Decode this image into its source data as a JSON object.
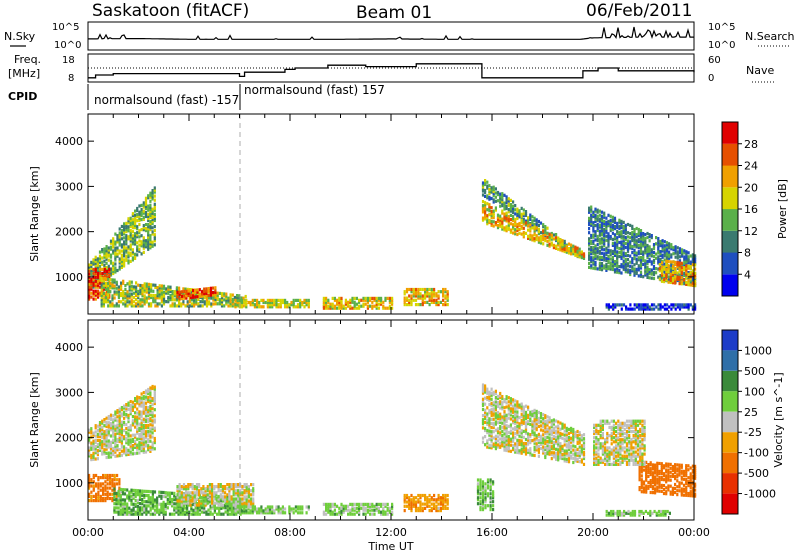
{
  "header": {
    "station": "Saskatoon (fitACF)",
    "beam": "Beam 01",
    "date": "06/Feb/2011"
  },
  "top_panels": {
    "nsky_label": "N.Sky",
    "nsky_ticks": [
      "10^5",
      "10^0"
    ],
    "nsearch_label": "N.Search",
    "nsearch_ticks": [
      "10^5",
      "10^0"
    ],
    "freq_label_1": "Freq.",
    "freq_label_2": "[MHz]",
    "freq_ticks": [
      "18",
      "8"
    ],
    "nave_label": "Nave",
    "nave_ticks": [
      "60",
      "0"
    ],
    "cpid_label": "CPID",
    "cpid_segments": [
      "normalsound (fast) -157",
      "normalsound (fast) 157"
    ]
  },
  "x_axis": {
    "label": "Time UT",
    "ticks": [
      "00:00",
      "04:00",
      "08:00",
      "12:00",
      "16:00",
      "20:00",
      "00:00"
    ],
    "range_hours": [
      0,
      24
    ]
  },
  "y_axis": {
    "label": "Slant Range [km]",
    "ticks": [
      "1000",
      "2000",
      "3000",
      "4000"
    ],
    "range_km": [
      180,
      4600
    ]
  },
  "power_colorbar": {
    "label": "Power [dB]",
    "ticks": [
      "4",
      "8",
      "12",
      "16",
      "20",
      "24",
      "28"
    ],
    "colors": [
      "#0000ee",
      "#1f4fbf",
      "#3a7a70",
      "#5ab04a",
      "#d6d400",
      "#f0a000",
      "#e65000",
      "#e00000"
    ]
  },
  "velocity_colorbar": {
    "label": "Velocity [m s^-1]",
    "ticks": [
      "1000",
      "500",
      "100",
      "25",
      "-25",
      "-100",
      "-500",
      "-1000"
    ],
    "colors": [
      "#1c3cc8",
      "#2f6fa8",
      "#3a8a3a",
      "#6fce3c",
      "#c0c0c0",
      "#f0a000",
      "#f07000",
      "#e83000",
      "#e00000"
    ]
  },
  "chart_data": [
    {
      "type": "line",
      "title": "N.Sky / N.Search",
      "x_hours": [
        0,
        2,
        4,
        6,
        8,
        10,
        12,
        14,
        16,
        18,
        19.5,
        20,
        22,
        24
      ],
      "series": [
        {
          "name": "N.Sky",
          "values": [
            3,
            4,
            2,
            2,
            2,
            2,
            3,
            2,
            2,
            2,
            2,
            6,
            8,
            8
          ]
        }
      ]
    },
    {
      "type": "line",
      "title": "Freq. / Nave",
      "x_hours": [
        0,
        0.3,
        1.0,
        6.0,
        6.2,
        7.8,
        8.2,
        9.5,
        11.0,
        13.0,
        15.6,
        19.6,
        20.2,
        21.0,
        24
      ],
      "series": [
        {
          "name": "Freq.",
          "values": [
            9.5,
            10.5,
            11.0,
            10.0,
            11.5,
            12.5,
            13.0,
            14.0,
            13.5,
            14.5,
            9.5,
            12.0,
            13.0,
            12.0,
            11.5
          ]
        },
        {
          "name": "Nave",
          "values": [
            28,
            30,
            32,
            28,
            30,
            38,
            40,
            44,
            42,
            48,
            22,
            34,
            40,
            36,
            34
          ]
        }
      ],
      "nave_reference_line": 35
    },
    {
      "type": "heatmap",
      "title": "Power [dB]",
      "xlabel": "Time UT",
      "ylabel": "Slant Range [km]",
      "x_range_hours": [
        0,
        24
      ],
      "y_range_km": [
        180,
        4600
      ],
      "z_range": [
        0,
        30
      ],
      "scatter_regions": [
        {
          "hours": [
            0.0,
            2.6
          ],
          "range_start_km": [
            700,
            1700
          ],
          "range_end_km": [
            1300,
            3000
          ],
          "power_db": 14
        },
        {
          "hours": [
            0.0,
            0.8
          ],
          "range_start_km": [
            500,
            500
          ],
          "range_end_km": [
            1200,
            1200
          ],
          "power_db": 28
        },
        {
          "hours": [
            0.5,
            6.2
          ],
          "range_start_km": [
            350,
            350
          ],
          "range_end_km": [
            1000,
            600
          ],
          "power_db": 16
        },
        {
          "hours": [
            3.5,
            5.0
          ],
          "range_start_km": [
            500,
            600
          ],
          "range_end_km": [
            700,
            800
          ],
          "power_db": 26
        },
        {
          "hours": [
            5.8,
            8.7
          ],
          "range_start_km": [
            330,
            330
          ],
          "range_end_km": [
            520,
            520
          ],
          "power_db": 18
        },
        {
          "hours": [
            9.3,
            12.0
          ],
          "range_start_km": [
            300,
            300
          ],
          "range_end_km": [
            560,
            560
          ],
          "power_db": 20
        },
        {
          "hours": [
            12.5,
            14.2
          ],
          "range_start_km": [
            380,
            380
          ],
          "range_end_km": [
            760,
            760
          ],
          "power_db": 20
        },
        {
          "hours": [
            15.6,
            19.6
          ],
          "range_start_km": [
            2800,
            1350
          ],
          "range_end_km": [
            3200,
            1500
          ],
          "power_db": 12
        },
        {
          "hours": [
            15.6,
            19.6
          ],
          "range_start_km": [
            2200,
            1400
          ],
          "range_end_km": [
            2700,
            1600
          ],
          "power_db": 20
        },
        {
          "hours": [
            19.8,
            24.0
          ],
          "range_start_km": [
            1200,
            800
          ],
          "range_end_km": [
            2600,
            1500
          ],
          "power_db": 10
        },
        {
          "hours": [
            22.6,
            24.0
          ],
          "range_start_km": [
            900,
            800
          ],
          "range_end_km": [
            1400,
            1300
          ],
          "power_db": 22
        },
        {
          "hours": [
            20.5,
            24.0
          ],
          "range_start_km": [
            280,
            280
          ],
          "range_end_km": [
            420,
            420
          ],
          "power_db": 4
        }
      ]
    },
    {
      "type": "heatmap",
      "title": "Velocity [m s^-1]",
      "xlabel": "Time UT",
      "ylabel": "Slant Range [km]",
      "x_range_hours": [
        0,
        24
      ],
      "y_range_km": [
        180,
        4600
      ],
      "z_range": [
        -1000,
        1000
      ],
      "scatter_regions": [
        {
          "hours": [
            0.0,
            2.6
          ],
          "range_start_km": [
            1500,
            1700
          ],
          "range_end_km": [
            2200,
            3200
          ],
          "velocity": 0
        },
        {
          "hours": [
            0.0,
            1.2
          ],
          "range_start_km": [
            600,
            600
          ],
          "range_end_km": [
            1200,
            1200
          ],
          "velocity": -150
        },
        {
          "hours": [
            1.0,
            6.0
          ],
          "range_start_km": [
            300,
            300
          ],
          "range_end_km": [
            900,
            700
          ],
          "velocity": 80
        },
        {
          "hours": [
            3.5,
            6.5
          ],
          "range_start_km": [
            500,
            500
          ],
          "range_end_km": [
            1000,
            1000
          ],
          "velocity": 0
        },
        {
          "hours": [
            5.8,
            8.7
          ],
          "range_start_km": [
            330,
            330
          ],
          "range_end_km": [
            500,
            500
          ],
          "velocity": 60
        },
        {
          "hours": [
            9.3,
            12.0
          ],
          "range_start_km": [
            300,
            300
          ],
          "range_end_km": [
            560,
            560
          ],
          "velocity": 50
        },
        {
          "hours": [
            12.5,
            14.2
          ],
          "range_start_km": [
            380,
            380
          ],
          "range_end_km": [
            760,
            760
          ],
          "velocity": -80
        },
        {
          "hours": [
            15.6,
            19.6
          ],
          "range_start_km": [
            1800,
            1400
          ],
          "range_end_km": [
            3200,
            2100
          ],
          "velocity": 0
        },
        {
          "hours": [
            15.4,
            16.0
          ],
          "range_start_km": [
            400,
            400
          ],
          "range_end_km": [
            1100,
            1100
          ],
          "velocity": 80
        },
        {
          "hours": [
            21.8,
            24.0
          ],
          "range_start_km": [
            800,
            700
          ],
          "range_end_km": [
            1500,
            1400
          ],
          "velocity": -300
        },
        {
          "hours": [
            20.0,
            22.0
          ],
          "range_start_km": [
            1400,
            1400
          ],
          "range_end_km": [
            2400,
            2400
          ],
          "velocity": 0
        },
        {
          "hours": [
            20.5,
            23.0
          ],
          "range_start_km": [
            280,
            280
          ],
          "range_end_km": [
            400,
            400
          ],
          "velocity": 60
        }
      ]
    }
  ]
}
